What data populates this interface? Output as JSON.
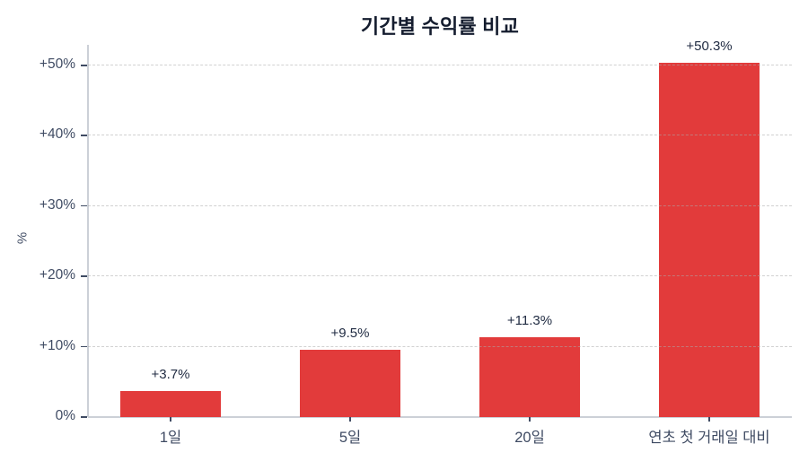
{
  "title": "기간별 수익률 비교",
  "ylabel": "%",
  "colors": {
    "bar": "#e23b3b",
    "grid": "rgba(172,172,172,0.55)",
    "axis": "#ccd0d7",
    "title_text": "#141c2e",
    "tick_text": "#3f4b63",
    "value_text": "#1f2a41",
    "background": "#ffffff"
  },
  "chart_data": {
    "type": "bar",
    "title": "기간별 수익률 비교",
    "xlabel": "",
    "ylabel": "%",
    "categories": [
      "1일",
      "5일",
      "20일",
      "연초 첫 거래일 대비"
    ],
    "values": [
      3.7,
      9.5,
      11.3,
      50.3
    ],
    "value_labels": [
      "+3.7%",
      "+9.5%",
      "+11.3%",
      "+50.3%"
    ],
    "yticks": [
      0,
      10,
      20,
      30,
      40,
      50
    ],
    "ytick_labels": [
      "0%",
      "+10%",
      "+20%",
      "+30%",
      "+40%",
      "+50%"
    ],
    "ylim": [
      0,
      52.9
    ],
    "grid": true,
    "grid_style": "dashed",
    "legend_position": "none",
    "bar_color": "#e23b3b"
  }
}
